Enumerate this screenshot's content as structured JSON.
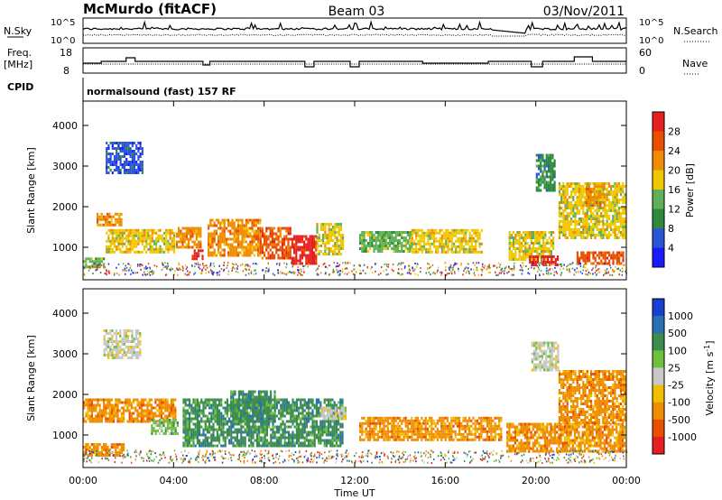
{
  "header": {
    "station": "McMurdo (fitACF)",
    "beam": "Beam 03",
    "date": "03/Nov/2011"
  },
  "status_panels": {
    "nsky_label": "N.Sky",
    "nsearch_label": "N.Search",
    "nsky_ticks": [
      "10^5",
      "10^0"
    ],
    "nsearch_ticks": [
      "10^5",
      "10^0"
    ],
    "freq_label": "Freq.",
    "freq_unit": "[MHz]",
    "freq_ticks": [
      "18",
      "8"
    ],
    "nave_label": "Nave",
    "nave_ticks": [
      "60",
      "0"
    ],
    "cpid_label": "CPID",
    "cpid_text": "normalsound (fast) 157 RF"
  },
  "chart_data": [
    {
      "type": "heatmap",
      "name": "power",
      "ylabel": "Slant Range [km]",
      "xlabel": "Time UT",
      "x_ticks": [
        "00:00",
        "04:00",
        "08:00",
        "12:00",
        "16:00",
        "20:00",
        "00:00"
      ],
      "xlim_hours": [
        0,
        24
      ],
      "ylim": [
        200,
        4600
      ],
      "y_ticks": [
        "1000",
        "2000",
        "3000",
        "4000"
      ],
      "colorbar": {
        "label": "Power [dB]",
        "ticks": [
          "4",
          "8",
          "12",
          "16",
          "20",
          "24",
          "28"
        ],
        "colors": [
          "#1a1aff",
          "#2b55d8",
          "#2c8a3a",
          "#5fb05a",
          "#f0c800",
          "#f08c00",
          "#e85000",
          "#e62020"
        ]
      },
      "echo_bands": [
        {
          "t0": 0.0,
          "t1": 0.9,
          "r0": 500,
          "r1": 750,
          "level": 3
        },
        {
          "t0": 0.6,
          "t1": 1.7,
          "r0": 1550,
          "r1": 1850,
          "level": 5
        },
        {
          "t0": 1.0,
          "t1": 4.0,
          "r0": 900,
          "r1": 1450,
          "level": 4
        },
        {
          "t0": 1.0,
          "t1": 2.6,
          "r0": 2800,
          "r1": 3600,
          "level": 1
        },
        {
          "t0": 4.1,
          "t1": 5.2,
          "r0": 1000,
          "r1": 1500,
          "level": 5
        },
        {
          "t0": 4.8,
          "t1": 5.3,
          "r0": 700,
          "r1": 950,
          "level": 7
        },
        {
          "t0": 5.5,
          "t1": 7.8,
          "r0": 800,
          "r1": 1700,
          "level": 5
        },
        {
          "t0": 7.8,
          "t1": 9.2,
          "r0": 700,
          "r1": 1500,
          "level": 6
        },
        {
          "t0": 9.2,
          "t1": 10.3,
          "r0": 600,
          "r1": 1300,
          "level": 7
        },
        {
          "t0": 10.3,
          "t1": 11.5,
          "r0": 800,
          "r1": 1600,
          "level": 4
        },
        {
          "t0": 12.2,
          "t1": 14.5,
          "r0": 900,
          "r1": 1400,
          "level": 3
        },
        {
          "t0": 14.5,
          "t1": 17.6,
          "r0": 850,
          "r1": 1450,
          "level": 4
        },
        {
          "t0": 18.8,
          "t1": 20.8,
          "r0": 700,
          "r1": 1400,
          "level": 4
        },
        {
          "t0": 19.7,
          "t1": 21.0,
          "r0": 550,
          "r1": 800,
          "level": 7
        },
        {
          "t0": 21.0,
          "t1": 23.9,
          "r0": 1200,
          "r1": 2600,
          "level": 4
        },
        {
          "t0": 22.2,
          "t1": 23.0,
          "r0": 2000,
          "r1": 2600,
          "level": 5
        },
        {
          "t0": 21.8,
          "t1": 23.9,
          "r0": 600,
          "r1": 900,
          "level": 6
        },
        {
          "t0": 20.0,
          "t1": 20.8,
          "r0": 2400,
          "r1": 3300,
          "level": 2
        }
      ]
    },
    {
      "type": "heatmap",
      "name": "velocity",
      "ylabel": "Slant Range [km]",
      "xlabel": "Time UT",
      "x_ticks": [
        "00:00",
        "04:00",
        "08:00",
        "12:00",
        "16:00",
        "20:00",
        "00:00"
      ],
      "xlim_hours": [
        0,
        24
      ],
      "ylim": [
        200,
        4600
      ],
      "y_ticks": [
        "1000",
        "2000",
        "3000",
        "4000"
      ],
      "colorbar": {
        "label": "Velocity [m s^-1]",
        "ticks": [
          "1000",
          "500",
          "100",
          "25",
          "-25",
          "-100",
          "-500",
          "-1000"
        ],
        "colors": [
          "#1a3fd0",
          "#2a6fb0",
          "#3c8c50",
          "#70c040",
          "#c8c8c8",
          "#f0c000",
          "#f08c00",
          "#e85000",
          "#e62020"
        ]
      },
      "echo_bands": [
        {
          "t0": 0.0,
          "t1": 1.8,
          "r0": 500,
          "r1": 800,
          "class": 6
        },
        {
          "t0": 0.0,
          "t1": 4.1,
          "r0": 1300,
          "r1": 1900,
          "class": 6
        },
        {
          "t0": 3.0,
          "t1": 4.2,
          "r0": 1000,
          "r1": 1400,
          "class": 3
        },
        {
          "t0": 4.4,
          "t1": 11.5,
          "r0": 700,
          "r1": 1900,
          "class": 2
        },
        {
          "t0": 6.5,
          "t1": 8.5,
          "r0": 1300,
          "r1": 2100,
          "class": 2
        },
        {
          "t0": 10.5,
          "t1": 11.6,
          "r0": 1400,
          "r1": 1700,
          "class": 4
        },
        {
          "t0": 12.2,
          "t1": 18.5,
          "r0": 850,
          "r1": 1450,
          "class": 6
        },
        {
          "t0": 18.7,
          "t1": 23.9,
          "r0": 600,
          "r1": 1300,
          "class": 6
        },
        {
          "t0": 21.0,
          "t1": 23.9,
          "r0": 1300,
          "r1": 2600,
          "class": 6
        },
        {
          "t0": 0.9,
          "t1": 2.5,
          "r0": 2900,
          "r1": 3600,
          "class": 4
        },
        {
          "t0": 19.8,
          "t1": 21.0,
          "r0": 2600,
          "r1": 3300,
          "class": 4
        }
      ]
    }
  ]
}
